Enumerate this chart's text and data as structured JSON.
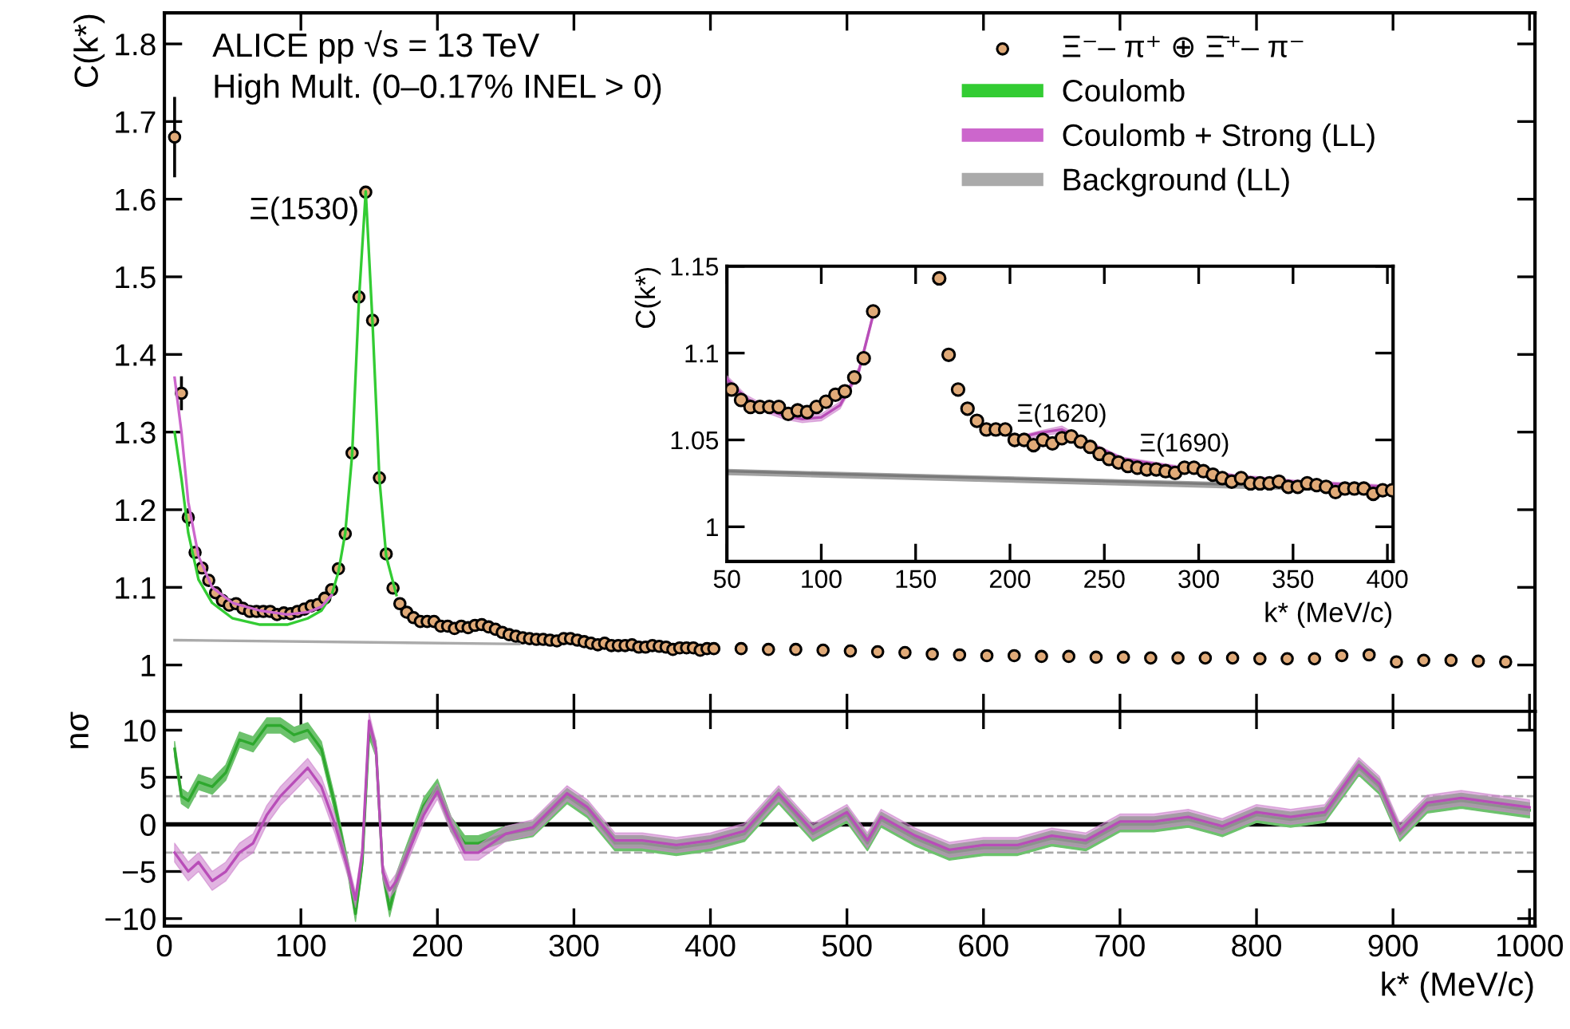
{
  "chart_data": [
    {
      "type": "scatter",
      "ylabel": "C(k*)",
      "xlim": [
        0,
        1004
      ],
      "ylim": [
        0.94,
        1.84
      ],
      "xticks": [
        0,
        100,
        200,
        300,
        400,
        500,
        600,
        700,
        800,
        900,
        1000
      ],
      "yticks": [
        1,
        1.1,
        1.2,
        1.3,
        1.4,
        1.5,
        1.6,
        1.7,
        1.8
      ],
      "tick_labels": "y",
      "legend": "top right",
      "annotations": [
        "ALICE pp √s = 13 TeV",
        "High Mult. (0–0.17% INEL > 0)",
        {
          "text": "Ξ(1530)",
          "x": 147.5,
          "y": 1.609
        }
      ],
      "series": [
        {
          "name": "Ξ⁻– π⁺ ⊕ Ξ̄⁺– π⁻",
          "color": "#e0aa78",
          "marker": "circle",
          "x": [
            7.5,
            12.5,
            17.5,
            22.5,
            27.5,
            32.5,
            37.5,
            42.5,
            47.5,
            52.5,
            57.5,
            62.5,
            67.5,
            72.5,
            77.5,
            82.5,
            87.5,
            92.5,
            97.5,
            102.5,
            107.5,
            112.5,
            117.5,
            122.5,
            127.5,
            132.5,
            137.5,
            142.5,
            147.5,
            152.5,
            157.5,
            162.5,
            167.5,
            172.5,
            177.5,
            182.5,
            187.5,
            192.5,
            197.5,
            202.5,
            207.5,
            212.5,
            217.5,
            222.5,
            227.5,
            232.5,
            237.5,
            242.5,
            247.5,
            252.5,
            257.5,
            262.5,
            267.5,
            272.5,
            277.5,
            282.5,
            287.5,
            292.5,
            297.5,
            302.5,
            307.5,
            312.5,
            317.5,
            322.5,
            327.5,
            332.5,
            337.5,
            342.5,
            347.5,
            352.5,
            357.5,
            362.5,
            367.5,
            372.5,
            377.5,
            382.5,
            387.5,
            392.5,
            397.5,
            402.5,
            422.5,
            442.5,
            462.5,
            482.5,
            502.5,
            522.5,
            542.5,
            562.5,
            582.5,
            602.5,
            622.5,
            642.5,
            662.5,
            682.5,
            702.5,
            722.5,
            742.5,
            762.5,
            782.5,
            802.5,
            822.5,
            842.5,
            862.5,
            882.5,
            902.5,
            922.5,
            942.5,
            962.5,
            982.5
          ],
          "values": [
            1.68,
            1.35,
            1.19,
            1.145,
            1.125,
            1.109,
            1.093,
            1.083,
            1.077,
            1.079,
            1.073,
            1.069,
            1.069,
            1.069,
            1.069,
            1.065,
            1.067,
            1.066,
            1.069,
            1.072,
            1.076,
            1.078,
            1.086,
            1.097,
            1.124,
            1.169,
            1.273,
            1.474,
            1.609,
            1.444,
            1.241,
            1.143,
            1.099,
            1.079,
            1.068,
            1.061,
            1.056,
            1.056,
            1.056,
            1.05,
            1.05,
            1.047,
            1.05,
            1.048,
            1.051,
            1.052,
            1.049,
            1.046,
            1.042,
            1.039,
            1.037,
            1.035,
            1.034,
            1.033,
            1.033,
            1.032,
            1.031,
            1.034,
            1.034,
            1.032,
            1.03,
            1.028,
            1.026,
            1.028,
            1.025,
            1.025,
            1.025,
            1.026,
            1.023,
            1.023,
            1.025,
            1.024,
            1.023,
            1.02,
            1.022,
            1.022,
            1.022,
            1.019,
            1.021,
            1.021,
            1.021,
            1.02,
            1.02,
            1.019,
            1.018,
            1.017,
            1.016,
            1.014,
            1.013,
            1.012,
            1.012,
            1.011,
            1.011,
            1.01,
            1.01,
            1.009,
            1.009,
            1.009,
            1.009,
            1.008,
            1.008,
            1.008,
            1.012,
            1.013,
            1.004,
            1.006,
            1.006,
            1.005,
            1.004
          ],
          "errors": [
            0.05,
            0.02,
            0.01,
            null,
            null,
            null,
            null,
            null,
            null,
            null,
            null,
            null,
            null,
            null,
            null,
            null,
            null,
            null,
            null,
            null,
            null,
            null,
            null,
            null,
            null,
            null,
            null,
            null,
            null,
            null,
            null,
            null,
            null,
            null,
            null,
            null,
            null,
            null,
            null,
            null,
            null,
            null,
            null,
            null,
            null,
            null,
            null,
            null,
            null,
            null,
            null,
            null,
            null,
            null,
            null,
            null,
            null,
            null,
            null,
            null,
            null,
            null,
            null,
            null,
            null,
            null,
            null,
            null,
            null,
            null,
            null,
            null,
            null,
            null,
            null,
            null,
            null,
            null,
            null,
            null,
            null,
            null,
            null,
            null,
            null,
            null,
            null,
            null,
            null,
            null,
            null,
            null,
            null,
            null,
            null,
            null,
            null,
            null,
            null,
            null,
            null,
            null,
            null,
            null,
            null,
            null,
            null,
            null,
            null
          ]
        },
        {
          "name": "Coulomb",
          "type": "line",
          "color": "#33cc33",
          "x": [
            7.5,
            12.5,
            17.5,
            25,
            35,
            50,
            70,
            90,
            105,
            115,
            122.5,
            127.5,
            132.5,
            137.5,
            142.5,
            147.5,
            152.5,
            157.5,
            162.5,
            170
          ],
          "values": [
            1.3,
            1.24,
            1.17,
            1.11,
            1.08,
            1.06,
            1.052,
            1.052,
            1.06,
            1.07,
            1.09,
            1.12,
            1.17,
            1.27,
            1.47,
            1.61,
            1.44,
            1.24,
            1.14,
            1.09
          ]
        },
        {
          "name": "Coulomb + Strong (LL)",
          "type": "line",
          "color": "#cc66cc",
          "x": [
            7.5,
            12.5,
            17.5,
            25,
            35,
            50,
            70,
            90,
            105,
            115,
            122.5
          ],
          "values": [
            1.37,
            1.3,
            1.21,
            1.14,
            1.1,
            1.08,
            1.07,
            1.065,
            1.068,
            1.075,
            1.09
          ]
        },
        {
          "name": "Background (LL)",
          "type": "line",
          "color": "#aaaaaa",
          "x": [
            7.5,
            260
          ],
          "values": [
            1.032,
            1.027
          ]
        }
      ]
    },
    {
      "type": "scatter",
      "xlabel": "k* (MeV/c)",
      "ylabel": "C(k*)",
      "xlim": [
        50,
        403
      ],
      "ylim": [
        0.98,
        1.15
      ],
      "xticks": [
        50,
        100,
        150,
        200,
        250,
        300,
        350,
        400
      ],
      "yticks": [
        1,
        1.05,
        1.1,
        1.15
      ],
      "annotations": [
        {
          "text": "Ξ(1620)",
          "x": 227.5,
          "y": 1.051
        },
        {
          "text": "Ξ(1690)",
          "x": 292.5,
          "y": 1.034
        }
      ],
      "series": [
        {
          "type": "line",
          "color": "#7a7a7a",
          "x": [
            50,
            400
          ],
          "values": [
            1.032,
            1.022
          ],
          "lower": [
            1.03,
            1.02
          ],
          "upper": [
            1.033,
            1.023
          ]
        },
        {
          "type": "line",
          "color": "#b84db8",
          "x": [
            50,
            60,
            70,
            80,
            90,
            100,
            110,
            120,
            127.5,
            165,
            200,
            215,
            227.5,
            240,
            260,
            290,
            320,
            350,
            400
          ],
          "values": [
            1.085,
            1.074,
            1.068,
            1.064,
            1.062,
            1.063,
            1.07,
            1.09,
            1.122,
            null,
            1.05,
            1.054,
            1.056,
            1.049,
            1.039,
            1.034,
            1.029,
            1.026,
            1.023
          ],
          "lower": [
            1.083,
            1.072,
            1.066,
            1.062,
            1.06,
            1.061,
            1.068,
            1.088,
            1.12,
            null,
            1.048,
            1.052,
            1.054,
            1.047,
            1.037,
            1.032,
            1.027,
            1.024,
            1.021
          ],
          "upper": [
            1.087,
            1.076,
            1.07,
            1.066,
            1.064,
            1.065,
            1.072,
            1.092,
            1.124,
            null,
            1.051,
            1.055,
            1.058,
            1.05,
            1.04,
            1.035,
            1.03,
            1.027,
            1.024
          ]
        },
        {
          "color": "#e0aa78",
          "marker": "circle",
          "x": [
            52.5,
            57.5,
            62.5,
            67.5,
            72.5,
            77.5,
            82.5,
            87.5,
            92.5,
            97.5,
            102.5,
            107.5,
            112.5,
            117.5,
            122.5,
            127.5,
            132.5,
            137.5,
            142.5,
            147.5,
            152.5,
            157.5,
            162.5,
            167.5,
            172.5,
            177.5,
            182.5,
            187.5,
            192.5,
            197.5,
            202.5,
            207.5,
            212.5,
            217.5,
            222.5,
            227.5,
            232.5,
            237.5,
            242.5,
            247.5,
            252.5,
            257.5,
            262.5,
            267.5,
            272.5,
            277.5,
            282.5,
            287.5,
            292.5,
            297.5,
            302.5,
            307.5,
            312.5,
            317.5,
            322.5,
            327.5,
            332.5,
            337.5,
            342.5,
            347.5,
            352.5,
            357.5,
            362.5,
            367.5,
            372.5,
            377.5,
            382.5,
            387.5,
            392.5,
            397.5,
            402.5
          ],
          "values": [
            1.079,
            1.073,
            1.069,
            1.069,
            1.069,
            1.069,
            1.065,
            1.067,
            1.066,
            1.069,
            1.072,
            1.076,
            1.078,
            1.086,
            1.097,
            1.124,
            null,
            null,
            null,
            null,
            null,
            null,
            1.143,
            1.099,
            1.079,
            1.068,
            1.061,
            1.056,
            1.056,
            1.056,
            1.05,
            1.05,
            1.047,
            1.05,
            1.048,
            1.051,
            1.052,
            1.049,
            1.046,
            1.042,
            1.039,
            1.037,
            1.035,
            1.034,
            1.033,
            1.033,
            1.032,
            1.031,
            1.034,
            1.034,
            1.032,
            1.03,
            1.028,
            1.026,
            1.028,
            1.025,
            1.025,
            1.025,
            1.026,
            1.023,
            1.023,
            1.025,
            1.024,
            1.023,
            1.02,
            1.022,
            1.022,
            1.022,
            1.019,
            1.021,
            1.021
          ]
        }
      ]
    },
    {
      "type": "line",
      "xlabel": "k* (MeV/c)",
      "ylabel": "nσ",
      "xlim": [
        0,
        1004
      ],
      "ylim": [
        -10.8,
        12
      ],
      "xticks": [
        0,
        100,
        200,
        300,
        400,
        500,
        600,
        700,
        800,
        900,
        1000
      ],
      "yticks": [
        {
          "value": -10,
          "label": "−10"
        },
        {
          "value": -5,
          "label": "−5"
        },
        0,
        5,
        10
      ],
      "ref_lines": [
        {
          "axis": "y",
          "value": 0,
          "color": "#000000",
          "line_style": "solid"
        },
        {
          "axis": "y",
          "value": 3,
          "color": "#aaaaaa",
          "line_style": "dashed"
        },
        {
          "axis": "y",
          "value": -3,
          "color": "#aaaaaa",
          "line_style": "dashed"
        }
      ],
      "series": [
        {
          "color": "#2ea82e",
          "x": [
            7.5,
            12.5,
            17.5,
            25,
            35,
            45,
            55,
            65,
            75,
            85,
            95,
            105,
            115,
            125,
            135,
            140,
            145,
            150,
            155,
            160,
            165,
            170,
            180,
            190,
            200,
            210,
            220,
            230,
            250,
            270,
            295,
            310,
            330,
            350,
            375,
            400,
            425,
            450,
            475,
            500,
            515,
            525,
            550,
            575,
            600,
            625,
            650,
            675,
            700,
            725,
            750,
            775,
            800,
            825,
            850,
            875,
            890,
            905,
            925,
            950,
            975,
            1000
          ],
          "values": [
            8,
            3,
            2.5,
            4.5,
            4,
            5.5,
            9,
            8.5,
            10.5,
            10.5,
            9.5,
            10,
            8,
            2,
            -5,
            -9.5,
            -4,
            10,
            8,
            -5,
            -9,
            -6,
            -2,
            2,
            4,
            0,
            -2,
            -2,
            -1,
            -0.5,
            3,
            1.5,
            -2,
            -2,
            -2.5,
            -2,
            -1,
            3,
            -1,
            1,
            -2,
            0.5,
            -1.5,
            -3,
            -2.5,
            -2.5,
            -1.5,
            -2,
            0,
            0,
            0.5,
            -0.5,
            1,
            0.5,
            1,
            6,
            4,
            -1,
            2,
            2.5,
            2,
            1.5
          ],
          "lower": [
            7.2,
            2.2,
            1.7,
            3.7,
            3.2,
            4.7,
            8.2,
            7.7,
            9.7,
            9.7,
            8.7,
            9.2,
            7.2,
            1.2,
            -5.8,
            -10.3,
            -4.8,
            9.2,
            7.2,
            -5.8,
            -9.8,
            -6.8,
            -2.8,
            1.2,
            3.2,
            -0.8,
            -2.8,
            -2.8,
            -1.8,
            -1.3,
            2.2,
            0.7,
            -2.8,
            -2.8,
            -3.3,
            -2.8,
            -1.8,
            2.2,
            -1.8,
            0.2,
            -2.8,
            -0.3,
            -2.3,
            -3.8,
            -3.3,
            -3.3,
            -2.3,
            -2.8,
            -0.8,
            -0.8,
            -0.3,
            -1.3,
            0.2,
            -0.3,
            0.2,
            5.2,
            3.2,
            -1.8,
            1.2,
            1.7,
            1.2,
            0.7
          ],
          "upper": [
            8.8,
            3.8,
            3.3,
            5.3,
            4.8,
            6.3,
            9.8,
            9.3,
            11.3,
            11.3,
            10.3,
            10.8,
            8.8,
            2.8,
            -4.2,
            -8.7,
            -3.2,
            10.8,
            8.8,
            -4.2,
            -8.2,
            -5.2,
            -1.2,
            2.8,
            4.8,
            0.8,
            -1.2,
            -1.2,
            -0.2,
            0.3,
            3.8,
            2.3,
            -1.2,
            -1.2,
            -1.7,
            -1.2,
            -0.2,
            3.8,
            -0.2,
            1.8,
            -1.2,
            1.3,
            -0.7,
            -2.2,
            -1.7,
            -1.7,
            -0.7,
            -1.2,
            0.8,
            0.8,
            1.3,
            0.3,
            1.8,
            1.3,
            1.8,
            6.8,
            4.8,
            -0.2,
            2.8,
            3.3,
            2.8,
            2.3
          ]
        },
        {
          "color": "#b84db8",
          "x": [
            7.5,
            12.5,
            17.5,
            25,
            35,
            45,
            55,
            65,
            75,
            85,
            95,
            105,
            115,
            125,
            135,
            140,
            145,
            150,
            155,
            160,
            165,
            170,
            180,
            190,
            200,
            210,
            220,
            230,
            250,
            270,
            295,
            310,
            330,
            350,
            375,
            400,
            425,
            450,
            475,
            500,
            515,
            525,
            550,
            575,
            600,
            625,
            650,
            675,
            700,
            725,
            750,
            775,
            800,
            825,
            850,
            875,
            890,
            905,
            925,
            950,
            975,
            1000
          ],
          "values": [
            -3,
            -4,
            -5,
            -4,
            -6,
            -5,
            -3,
            -2,
            1,
            3,
            4.5,
            6,
            4,
            0,
            -5,
            -8,
            -3,
            11,
            8,
            -5,
            -7,
            -6,
            -2.5,
            1,
            3.5,
            0,
            -3,
            -3,
            -1,
            -0.3,
            3.3,
            1.8,
            -1.7,
            -1.7,
            -2.2,
            -1.7,
            -0.7,
            3.3,
            -0.7,
            1.3,
            -1.7,
            0.8,
            -1.2,
            -2.7,
            -2.2,
            -2.2,
            -1.2,
            -1.7,
            0.3,
            0.3,
            0.8,
            -0.2,
            1.3,
            0.8,
            1.3,
            6.3,
            4.3,
            -0.7,
            2.3,
            2.8,
            2.3,
            1.8
          ],
          "lower": [
            -4,
            -5,
            -6,
            -5,
            -7,
            -6,
            -4,
            -3,
            0,
            2,
            3.5,
            5,
            3,
            -1,
            -5.8,
            -8.8,
            -3.8,
            10.2,
            7.2,
            -5.8,
            -7.8,
            -6.8,
            -3.3,
            0.2,
            2.7,
            -0.8,
            -3.8,
            -3.8,
            -1.8,
            -1.1,
            2.5,
            1.0,
            -2.5,
            -2.5,
            -3.0,
            -2.5,
            -1.5,
            2.5,
            -1.5,
            0.5,
            -2.5,
            0,
            -2.0,
            -3.5,
            -3.0,
            -3.0,
            -2.0,
            -2.5,
            -0.5,
            -0.5,
            0,
            -1.0,
            0.5,
            0,
            0.5,
            5.5,
            3.5,
            -1.5,
            1.5,
            2.0,
            1.5,
            1.0
          ],
          "upper": [
            -2,
            -3,
            -4,
            -3,
            -5,
            -4,
            -2,
            -1,
            2,
            4,
            5.5,
            7,
            5,
            1,
            -4.2,
            -7.2,
            -2.2,
            11.8,
            8.8,
            -4.2,
            -6.2,
            -5.2,
            -1.7,
            1.8,
            4.3,
            0.8,
            -2.2,
            -2.2,
            -0.2,
            0.5,
            4.1,
            2.6,
            -0.9,
            -0.9,
            -1.4,
            -0.9,
            0.1,
            4.1,
            0.1,
            2.1,
            -0.9,
            1.6,
            -0.4,
            -1.9,
            -1.4,
            -1.4,
            -0.4,
            -0.9,
            1.1,
            1.1,
            1.6,
            0.6,
            2.1,
            1.6,
            2.1,
            7.1,
            5.1,
            0.1,
            3.1,
            3.6,
            3.1,
            2.6
          ]
        }
      ]
    }
  ]
}
